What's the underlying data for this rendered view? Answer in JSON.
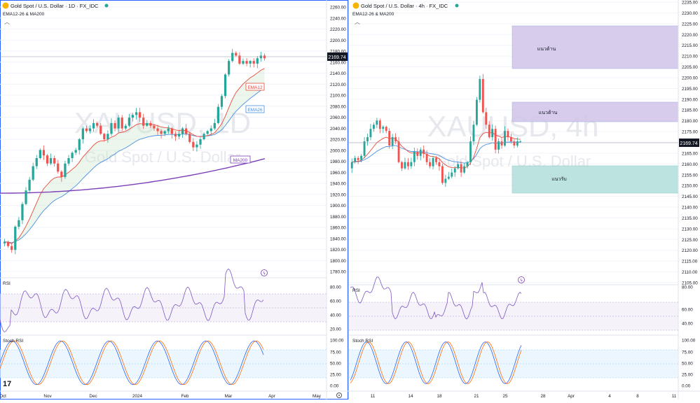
{
  "colors": {
    "up": "#26a69a",
    "down": "#ef5350",
    "ema12": "#e84b3c",
    "ema26": "#4a90e2",
    "ma200": "#7b3fb6",
    "rsi": "#7e57c2",
    "stochK": "#2962ff",
    "stochD": "#ff6d00",
    "grid": "#f0f3fa",
    "text": "#131722",
    "resist": "#d1c4e9",
    "support": "#b2dfdb"
  },
  "left": {
    "symbol_title": "Gold Spot / U.S. Dollar · 1D · FX_IDC",
    "indicator_title": "EMA12-26 & MA200",
    "watermark_symbol": "XAUUSD, 1D",
    "watermark_name": "Gold Spot / U.S. Dollar",
    "price_ticks": [
      "2260.00",
      "2240.00",
      "2220.00",
      "2200.00",
      "2180.00",
      "2160.00",
      "2140.00",
      "2120.00",
      "2100.00",
      "2080.00",
      "2060.00",
      "2040.00",
      "2020.00",
      "2000.00",
      "1980.00",
      "1960.00",
      "1940.00",
      "1920.00",
      "1900.00",
      "1880.00",
      "1860.00",
      "1840.00",
      "1820.00",
      "1800.00",
      "1780.00"
    ],
    "last_price": "2169.74",
    "labels": {
      "ema12": "EMA12",
      "ema26": "EMA26",
      "ma200": "MA200"
    },
    "rsi_label": "RSI",
    "rsi_ticks": [
      "80.00",
      "60.00",
      "40.00",
      "20.00"
    ],
    "stoch_label": "Stoch RSI",
    "stoch_ticks": [
      "100.00",
      "75.00",
      "50.00",
      "25.00",
      "0.00"
    ],
    "time_ticks": [
      "Oct",
      "Nov",
      "Dec",
      "2024",
      "Feb",
      "Mar",
      "Apr",
      "May"
    ]
  },
  "right": {
    "symbol_title": "Gold Spot / U.S. Dollar · 4h · FX_IDC",
    "indicator_title": "EMA12-26 & MA200",
    "watermark_symbol": "XAUUSD, 4h",
    "watermark_name": "Gold Spot / U.S. Dollar",
    "price_ticks": [
      "2235.00",
      "2230.00",
      "2225.00",
      "2220.00",
      "2215.00",
      "2210.00",
      "2205.00",
      "2200.00",
      "2195.00",
      "2190.00",
      "2185.00",
      "2180.00",
      "2175.00",
      "2170.00",
      "2165.00",
      "2160.00",
      "2155.00",
      "2150.00",
      "2145.00",
      "2140.00",
      "2135.00",
      "2130.00",
      "2125.00",
      "2120.00",
      "2115.00",
      "2110.00",
      "2105.00"
    ],
    "last_price": "2169.74",
    "zones": {
      "resist1": "แนวต้าน",
      "resist2": "แนวต้าน",
      "support": "แนวรับ"
    },
    "rsi_label": "RSI",
    "rsi_ticks": [
      "80.00",
      "60.00",
      "40.00"
    ],
    "stoch_label": "Stoch RSI",
    "stoch_ticks": [
      "100.00",
      "75.00",
      "50.00",
      "25.00",
      "0.00"
    ],
    "time_ticks": [
      "11",
      "14",
      "18",
      "21",
      "25",
      "28",
      "Apr",
      "4",
      "8",
      "11"
    ]
  },
  "chart_data": [
    {
      "type": "candlestick",
      "title": "Gold Spot / U.S. Dollar · 1D · FX_IDC",
      "ylim": [
        1775,
        2265
      ],
      "closes_approx": [
        1830,
        1822,
        1815,
        1858,
        1870,
        1900,
        1925,
        1945,
        1970,
        1985,
        2000,
        1990,
        1975,
        1985,
        1975,
        1960,
        1950,
        1975,
        1985,
        1995,
        2000,
        2020,
        2040,
        2035,
        2040,
        2050,
        2045,
        2030,
        2020,
        2030,
        2050,
        2040,
        2060,
        2040,
        2045,
        2060,
        2065,
        2070,
        2060,
        2045,
        2050,
        2045,
        2040,
        2035,
        2030,
        2035,
        2040,
        2030,
        2025,
        2030,
        2040,
        2030,
        2015,
        2005,
        2010,
        2020,
        2030,
        2035,
        2040,
        2050,
        2080,
        2100,
        2140,
        2165,
        2180,
        2175,
        2160,
        2165,
        2160,
        2165,
        2160,
        2170,
        2175,
        2170
      ],
      "ema12_end": "EMA12",
      "ema26_end": "EMA26",
      "ma200_end": "MA200"
    },
    {
      "type": "candlestick",
      "title": "Gold Spot / U.S. Dollar · 4h · FX_IDC",
      "ylim": [
        2102,
        2237
      ],
      "closes_approx": [
        2160,
        2162,
        2161,
        2163,
        2170,
        2172,
        2176,
        2178,
        2180,
        2176,
        2177,
        2175,
        2168,
        2172,
        2170,
        2160,
        2157,
        2160,
        2158,
        2160,
        2165,
        2163,
        2166,
        2164,
        2160,
        2158,
        2162,
        2160,
        2158,
        2150,
        2152,
        2153,
        2155,
        2157,
        2159,
        2155,
        2158,
        2160,
        2170,
        2178,
        2190,
        2200,
        2184,
        2178,
        2172,
        2176,
        2166,
        2170,
        2168,
        2175,
        2172,
        2170,
        2168,
        2170,
        2170
      ]
    }
  ]
}
